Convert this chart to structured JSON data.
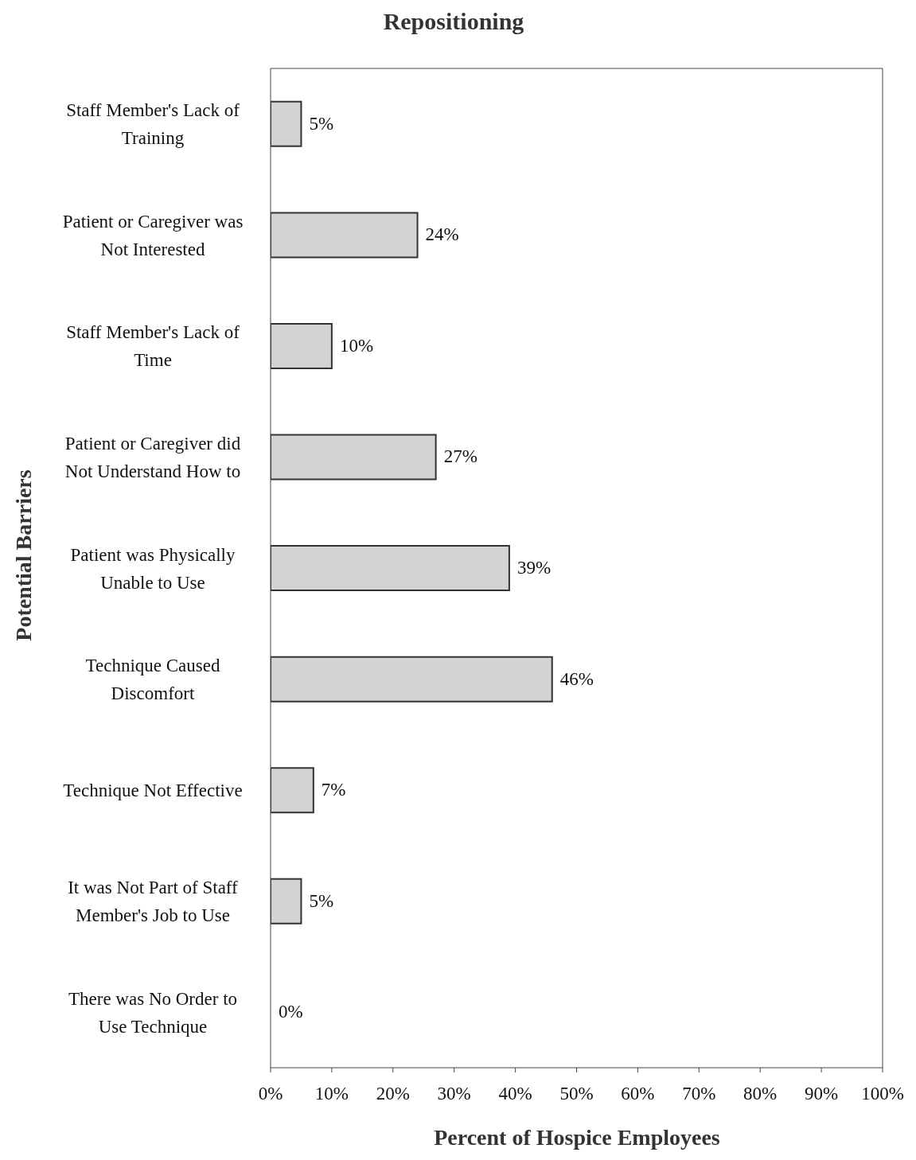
{
  "chart_data": {
    "type": "bar",
    "orientation": "horizontal",
    "title": "Repositioning",
    "xlabel": "Percent of Hospice Employees",
    "ylabel": "Potential Barriers",
    "categories": [
      "Staff Member's Lack of Training",
      "Patient or Caregiver was Not Interested",
      "Staff Member's Lack of Time",
      "Patient or Caregiver did Not Understand How to",
      "Patient was Physically Unable to Use",
      "Technique Caused Discomfort",
      "Technique Not Effective",
      "It was Not Part of Staff Member's Job to Use",
      "There was No Order to Use Technique"
    ],
    "values": [
      5,
      24,
      10,
      27,
      39,
      46,
      7,
      5,
      0
    ],
    "value_labels": [
      "5%",
      "24%",
      "10%",
      "27%",
      "39%",
      "46%",
      "7%",
      "5%",
      "0%"
    ],
    "color": "#d3d3d3",
    "xlim": [
      0,
      100
    ],
    "xticks": [
      {
        "value": 0,
        "label": "0%"
      },
      {
        "value": 10,
        "label": "10%"
      },
      {
        "value": 20,
        "label": "20%"
      },
      {
        "value": 30,
        "label": "30%"
      },
      {
        "value": 40,
        "label": "40%"
      },
      {
        "value": 50,
        "label": "50%"
      },
      {
        "value": 60,
        "label": "60%"
      },
      {
        "value": 70,
        "label": "70%"
      },
      {
        "value": 80,
        "label": "80%"
      },
      {
        "value": 90,
        "label": "90%"
      },
      {
        "value": 100,
        "label": "100%"
      }
    ],
    "grid": false,
    "legend": false
  }
}
